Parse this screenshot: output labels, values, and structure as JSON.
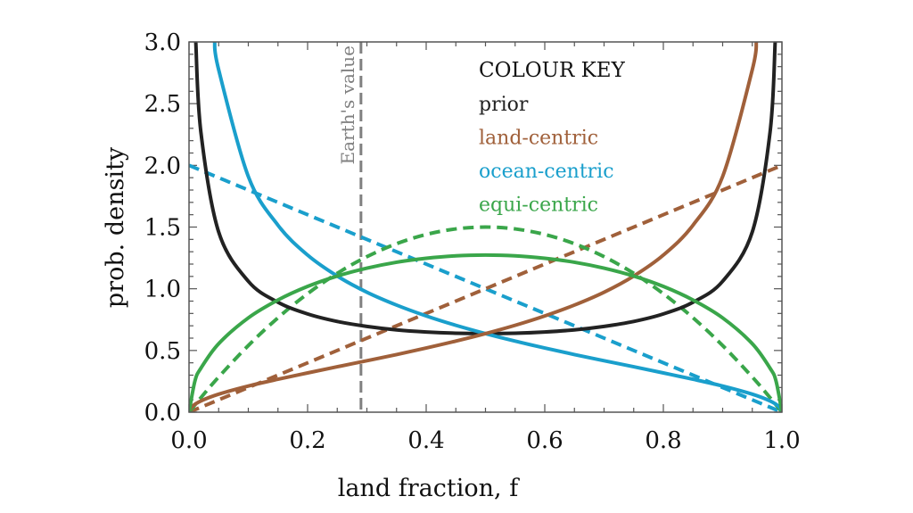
{
  "chart_data": {
    "type": "line",
    "xlabel": "land fraction, f",
    "ylabel": "prob. density",
    "xlim": [
      0,
      1
    ],
    "ylim": [
      0,
      3
    ],
    "xticks": [
      "0.0",
      "0.2",
      "0.4",
      "0.6",
      "0.8",
      "1.0"
    ],
    "xtick_values": [
      0,
      0.2,
      0.4,
      0.6,
      0.8,
      1.0
    ],
    "yticks": [
      "0.0",
      "0.5",
      "1.0",
      "1.5",
      "2.0",
      "2.5",
      "3.0"
    ],
    "ytick_values": [
      0,
      0.5,
      1.0,
      1.5,
      2.0,
      2.5,
      3.0
    ],
    "grid": false,
    "legend": {
      "title": "COLOUR KEY",
      "placement": "top-right",
      "entries": [
        {
          "label": "prior",
          "color": "#222222"
        },
        {
          "label": "land-centric",
          "color": "#a0603a"
        },
        {
          "label": "ocean-centric",
          "color": "#1a9fcc"
        },
        {
          "label": "equi-centric",
          "color": "#3aa64a"
        }
      ]
    },
    "annotation": {
      "label": "Earth's value",
      "x": 0.29,
      "color": "#808080"
    },
    "series": [
      {
        "key": "prior",
        "style": "solid",
        "color": "#222222",
        "points": [
          [
            0.0114,
            3.0
          ],
          [
            0.02,
            2.27
          ],
          [
            0.05,
            1.46
          ],
          [
            0.1,
            1.061
          ],
          [
            0.15,
            0.891
          ],
          [
            0.2,
            0.796
          ],
          [
            0.25,
            0.735
          ],
          [
            0.3,
            0.695
          ],
          [
            0.35,
            0.667
          ],
          [
            0.4,
            0.65
          ],
          [
            0.45,
            0.64
          ],
          [
            0.5,
            0.637
          ],
          [
            0.55,
            0.64
          ],
          [
            0.6,
            0.65
          ],
          [
            0.65,
            0.667
          ],
          [
            0.7,
            0.695
          ],
          [
            0.75,
            0.735
          ],
          [
            0.8,
            0.796
          ],
          [
            0.85,
            0.891
          ],
          [
            0.9,
            1.061
          ],
          [
            0.95,
            1.46
          ],
          [
            0.98,
            2.27
          ],
          [
            0.9886,
            3.0
          ]
        ]
      },
      {
        "key": "ocean-centric",
        "style": "solid",
        "color": "#1a9fcc",
        "points": [
          [
            0.0431,
            3.0
          ],
          [
            0.05,
            2.775
          ],
          [
            0.1,
            1.91
          ],
          [
            0.15,
            1.515
          ],
          [
            0.2,
            1.273
          ],
          [
            0.25,
            1.103
          ],
          [
            0.3,
            0.972
          ],
          [
            0.35,
            0.868
          ],
          [
            0.4,
            0.78
          ],
          [
            0.45,
            0.704
          ],
          [
            0.5,
            0.637
          ],
          [
            0.55,
            0.576
          ],
          [
            0.6,
            0.52
          ],
          [
            0.65,
            0.467
          ],
          [
            0.7,
            0.417
          ],
          [
            0.75,
            0.368
          ],
          [
            0.8,
            0.318
          ],
          [
            0.85,
            0.267
          ],
          [
            0.9,
            0.212
          ],
          [
            0.95,
            0.146
          ],
          [
            0.98,
            0.091
          ],
          [
            0.995,
            0.045
          ],
          [
            1.0,
            0.0
          ]
        ]
      },
      {
        "key": "land-centric",
        "style": "solid",
        "color": "#a0603a",
        "points": [
          [
            0.0,
            0.0
          ],
          [
            0.005,
            0.045
          ],
          [
            0.02,
            0.091
          ],
          [
            0.05,
            0.146
          ],
          [
            0.1,
            0.212
          ],
          [
            0.15,
            0.267
          ],
          [
            0.2,
            0.318
          ],
          [
            0.25,
            0.368
          ],
          [
            0.3,
            0.417
          ],
          [
            0.35,
            0.467
          ],
          [
            0.4,
            0.52
          ],
          [
            0.45,
            0.576
          ],
          [
            0.5,
            0.637
          ],
          [
            0.55,
            0.704
          ],
          [
            0.6,
            0.78
          ],
          [
            0.65,
            0.868
          ],
          [
            0.7,
            0.972
          ],
          [
            0.75,
            1.103
          ],
          [
            0.8,
            1.273
          ],
          [
            0.85,
            1.515
          ],
          [
            0.9,
            1.91
          ],
          [
            0.95,
            2.775
          ],
          [
            0.9569,
            3.0
          ]
        ]
      },
      {
        "key": "equi-centric",
        "style": "solid",
        "color": "#3aa64a",
        "points": [
          [
            0.0,
            0.0
          ],
          [
            0.01,
            0.253
          ],
          [
            0.02,
            0.356
          ],
          [
            0.05,
            0.555
          ],
          [
            0.1,
            0.764
          ],
          [
            0.15,
            0.909
          ],
          [
            0.2,
            1.019
          ],
          [
            0.25,
            1.103
          ],
          [
            0.3,
            1.167
          ],
          [
            0.35,
            1.215
          ],
          [
            0.4,
            1.247
          ],
          [
            0.45,
            1.267
          ],
          [
            0.5,
            1.273
          ],
          [
            0.55,
            1.267
          ],
          [
            0.6,
            1.247
          ],
          [
            0.65,
            1.215
          ],
          [
            0.7,
            1.167
          ],
          [
            0.75,
            1.103
          ],
          [
            0.8,
            1.019
          ],
          [
            0.85,
            0.909
          ],
          [
            0.9,
            0.764
          ],
          [
            0.95,
            0.555
          ],
          [
            0.98,
            0.356
          ],
          [
            0.99,
            0.253
          ],
          [
            1.0,
            0.0
          ]
        ]
      },
      {
        "key": "ocean-centric",
        "style": "dashed",
        "color": "#1a9fcc",
        "points": [
          [
            0.0,
            2.0
          ],
          [
            1.0,
            0.0
          ]
        ]
      },
      {
        "key": "land-centric",
        "style": "dashed",
        "color": "#a0603a",
        "points": [
          [
            0.0,
            0.0
          ],
          [
            1.0,
            2.0
          ]
        ]
      },
      {
        "key": "equi-centric",
        "style": "dashed",
        "color": "#3aa64a",
        "points": [
          [
            0.0,
            0.0
          ],
          [
            0.02,
            0.1176
          ],
          [
            0.05,
            0.285
          ],
          [
            0.1,
            0.54
          ],
          [
            0.15,
            0.765
          ],
          [
            0.2,
            0.96
          ],
          [
            0.25,
            1.125
          ],
          [
            0.3,
            1.26
          ],
          [
            0.35,
            1.365
          ],
          [
            0.4,
            1.44
          ],
          [
            0.45,
            1.485
          ],
          [
            0.5,
            1.5
          ],
          [
            0.55,
            1.485
          ],
          [
            0.6,
            1.44
          ],
          [
            0.65,
            1.365
          ],
          [
            0.7,
            1.26
          ],
          [
            0.75,
            1.125
          ],
          [
            0.8,
            0.96
          ],
          [
            0.85,
            0.765
          ],
          [
            0.9,
            0.54
          ],
          [
            0.95,
            0.285
          ],
          [
            0.98,
            0.1176
          ],
          [
            1.0,
            0.0
          ]
        ]
      }
    ]
  }
}
